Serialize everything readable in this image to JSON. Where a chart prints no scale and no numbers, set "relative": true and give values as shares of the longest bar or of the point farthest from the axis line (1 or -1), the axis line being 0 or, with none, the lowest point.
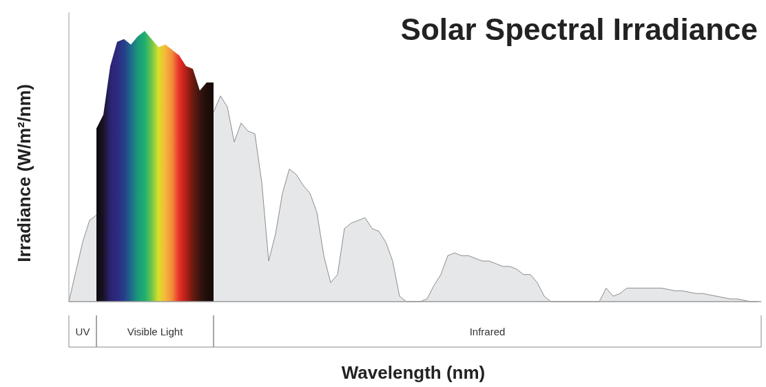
{
  "chart_data": {
    "type": "area",
    "title": "Solar Spectral Irradiance",
    "xlabel": "Wavelength (nm)",
    "ylabel": "Irradiance (W/m²/nm)",
    "relative": true,
    "categories": [
      null,
      null,
      null,
      null,
      null,
      null,
      null,
      null,
      null,
      null,
      null,
      null,
      null,
      null,
      null,
      null,
      null,
      null,
      null,
      null,
      null,
      null,
      null,
      null,
      null,
      null,
      null,
      null,
      null,
      null,
      null,
      null,
      null,
      null,
      null,
      null,
      null,
      null,
      null,
      null,
      null,
      null,
      null,
      null,
      null,
      null,
      null,
      null,
      null,
      null,
      null,
      null,
      null,
      null,
      null,
      null,
      null,
      null,
      null,
      null,
      null,
      null,
      null,
      null,
      null,
      null,
      null,
      null,
      null,
      null,
      null,
      null,
      null,
      null,
      null,
      null,
      null,
      null,
      null,
      null,
      null,
      null,
      null,
      null,
      null,
      null,
      null,
      null,
      null,
      null,
      null,
      null,
      null,
      null,
      null,
      null,
      null,
      null,
      null,
      null,
      null
    ],
    "series": [
      {
        "color": "#e6e7e8",
        "values": [
          0,
          0.11,
          0.22,
          0.3,
          0.32,
          null,
          null,
          null,
          null,
          null,
          null,
          null,
          null,
          null,
          null,
          null,
          null,
          null,
          null,
          null,
          null,
          null,
          null,
          null,
          null,
          null,
          null,
          null,
          null,
          null,
          null,
          null,
          null,
          null,
          null,
          null,
          null,
          null,
          null,
          null,
          null,
          null,
          null,
          null,
          null,
          null,
          null,
          null,
          null,
          null,
          null,
          null,
          null,
          null,
          null,
          null,
          null,
          null,
          null,
          null,
          null,
          null,
          null,
          null,
          null,
          null,
          null,
          null,
          null,
          null,
          null,
          null,
          null,
          null,
          null,
          null,
          null,
          null,
          null,
          null,
          null,
          null,
          null,
          null,
          null,
          null,
          null,
          null,
          null,
          null,
          null,
          null,
          null,
          null,
          null,
          null,
          null,
          null,
          null,
          null,
          null
        ]
      },
      {
        "color": "#1fae70",
        "colors": [
          null,
          null,
          null,
          null,
          "#0a0a0a",
          "#1a1228",
          "#2a2470",
          "#2e2a80",
          "#263e8a",
          "#1e6a8a",
          "#1a9a7a",
          "#1fae70",
          "#6cc44a",
          "#d8e02a",
          "#f5b83a",
          "#f08a3a",
          "#e8302a",
          "#b02018",
          "#6a1a10",
          "#3a1410",
          "#1e0e0a",
          "#150a08",
          null,
          null,
          null,
          null,
          null,
          null,
          null,
          null,
          null,
          null,
          null,
          null,
          null,
          null,
          null,
          null,
          null,
          null,
          null,
          null,
          null,
          null,
          null,
          null,
          null,
          null,
          null,
          null,
          null,
          null,
          null,
          null,
          null,
          null,
          null,
          null,
          null,
          null,
          null,
          null,
          null,
          null,
          null,
          null,
          null,
          null,
          null,
          null,
          null,
          null,
          null,
          null,
          null,
          null,
          null,
          null,
          null,
          null,
          null,
          null,
          null,
          null,
          null,
          null,
          null,
          null,
          null,
          null,
          null,
          null,
          null,
          null,
          null,
          null,
          null,
          null,
          null,
          null,
          null
        ],
        "values": [
          null,
          null,
          null,
          null,
          0.64,
          0.69,
          0.87,
          0.96,
          0.97,
          0.95,
          0.98,
          1,
          0.97,
          0.94,
          0.95,
          0.93,
          0.91,
          0.87,
          0.86,
          0.78,
          0.81,
          0.81,
          null,
          null,
          null,
          null,
          null,
          null,
          null,
          null,
          null,
          null,
          null,
          null,
          null,
          null,
          null,
          null,
          null,
          null,
          null,
          null,
          null,
          null,
          null,
          null,
          null,
          null,
          null,
          null,
          null,
          null,
          null,
          null,
          null,
          null,
          null,
          null,
          null,
          null,
          null,
          null,
          null,
          null,
          null,
          null,
          null,
          null,
          null,
          null,
          null,
          null,
          null,
          null,
          null,
          null,
          null,
          null,
          null,
          null,
          null,
          null,
          null,
          null,
          null,
          null,
          null,
          null,
          null,
          null,
          null,
          null,
          null,
          null,
          null,
          null,
          null,
          null,
          null,
          null,
          null
        ]
      },
      {
        "color": "#e6e7e8",
        "values": [
          null,
          null,
          null,
          null,
          null,
          null,
          null,
          null,
          null,
          null,
          null,
          null,
          null,
          null,
          null,
          null,
          null,
          null,
          null,
          null,
          null,
          0.7,
          0.76,
          0.72,
          0.59,
          0.66,
          0.63,
          0.62,
          0.44,
          0.15,
          0.25,
          0.4,
          0.49,
          0.47,
          0.43,
          0.4,
          0.33,
          0.17,
          0.07,
          0.1,
          0.27,
          0.29,
          0.3,
          0.31,
          0.27,
          0.26,
          0.22,
          0.15,
          0.02,
          0,
          0,
          0,
          0.01,
          0.06,
          0.1,
          0.17,
          0.18,
          0.17,
          0.17,
          0.16,
          0.15,
          0.15,
          0.14,
          0.13,
          0.13,
          0.12,
          0.1,
          0.1,
          0.07,
          0.02,
          0,
          0,
          0,
          0,
          0,
          0,
          0,
          0,
          0.05,
          0.02,
          0.03,
          0.05,
          0.05,
          0.05,
          0.05,
          0.05,
          0.05,
          0.045,
          0.04,
          0.04,
          0.035,
          0.03,
          0.03,
          0.025,
          0.02,
          0.015,
          0.01,
          0.01,
          0.005,
          0,
          0
        ]
      }
    ],
    "annotations": [
      "UV",
      "Visible Light",
      "Infrared"
    ]
  }
}
